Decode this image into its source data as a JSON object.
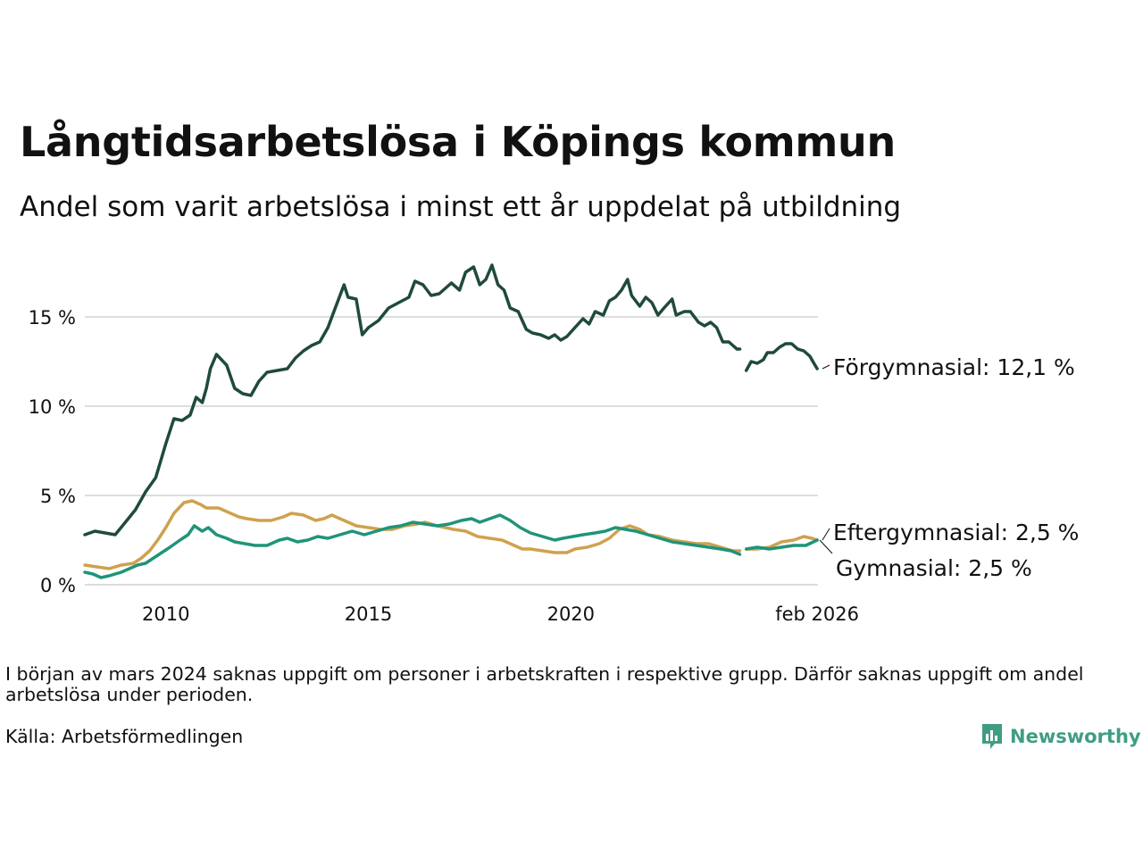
{
  "title": "Långtidsarbetslösa i Köpings kommun",
  "subtitle": "Andel som varit arbetslösa i minst ett år uppdelat på utbildning",
  "note": "I början av mars 2024 saknas uppgift om personer i arbetskraften i respektive grupp. Därför saknas uppgift om andel arbetslösa under perioden.",
  "source": "Källa: Arbetsförmedlingen",
  "brand": "Newsworthy",
  "colors": {
    "forgymnasial": "#1f4a3d",
    "eftergymnasial": "#cfa14f",
    "gymnasial": "#1f9479",
    "grid": "#dddddd",
    "brand": "#3f9d83"
  },
  "chart_data": {
    "type": "line",
    "title": "Långtidsarbetslösa i Köpings kommun",
    "subtitle": "Andel som varit arbetslösa i minst ett år uppdelat på utbildning",
    "xlabel": "",
    "ylabel": "",
    "xlim": [
      2008.0,
      2026.1
    ],
    "ylim": [
      0,
      18
    ],
    "grid": true,
    "yticks": [
      {
        "value": 0,
        "label": "0 %"
      },
      {
        "value": 5,
        "label": "5 %"
      },
      {
        "value": 10,
        "label": "10 %"
      },
      {
        "value": 15,
        "label": "15 %"
      }
    ],
    "xticks": [
      {
        "value": 2010,
        "label": "2010"
      },
      {
        "value": 2015,
        "label": "2015"
      },
      {
        "value": 2020,
        "label": "2020"
      },
      {
        "value": 2026.08,
        "label": "feb 2026"
      }
    ],
    "gap": [
      2024.17,
      2024.33
    ],
    "series": [
      {
        "name": "Förgymnasial",
        "color_key": "forgymnasial",
        "end_label": "Förgymnasial: 12,1 %",
        "points": [
          [
            2008.0,
            2.8
          ],
          [
            2008.25,
            3.0
          ],
          [
            2008.5,
            2.9
          ],
          [
            2008.75,
            2.8
          ],
          [
            2009.0,
            3.5
          ],
          [
            2009.25,
            4.2
          ],
          [
            2009.5,
            5.2
          ],
          [
            2009.75,
            6.0
          ],
          [
            2010.0,
            7.9
          ],
          [
            2010.2,
            9.3
          ],
          [
            2010.4,
            9.2
          ],
          [
            2010.6,
            9.5
          ],
          [
            2010.75,
            10.5
          ],
          [
            2010.9,
            10.2
          ],
          [
            2011.0,
            11.0
          ],
          [
            2011.1,
            12.1
          ],
          [
            2011.25,
            12.9
          ],
          [
            2011.5,
            12.3
          ],
          [
            2011.7,
            11.0
          ],
          [
            2011.9,
            10.7
          ],
          [
            2012.1,
            10.6
          ],
          [
            2012.3,
            11.4
          ],
          [
            2012.5,
            11.9
          ],
          [
            2012.75,
            12.0
          ],
          [
            2013.0,
            12.1
          ],
          [
            2013.2,
            12.7
          ],
          [
            2013.4,
            13.1
          ],
          [
            2013.6,
            13.4
          ],
          [
            2013.8,
            13.6
          ],
          [
            2014.0,
            14.4
          ],
          [
            2014.2,
            15.6
          ],
          [
            2014.4,
            16.8
          ],
          [
            2014.5,
            16.1
          ],
          [
            2014.7,
            16.0
          ],
          [
            2014.85,
            14.0
          ],
          [
            2015.0,
            14.4
          ],
          [
            2015.25,
            14.8
          ],
          [
            2015.5,
            15.5
          ],
          [
            2015.75,
            15.8
          ],
          [
            2016.0,
            16.1
          ],
          [
            2016.15,
            17.0
          ],
          [
            2016.35,
            16.8
          ],
          [
            2016.55,
            16.2
          ],
          [
            2016.75,
            16.3
          ],
          [
            2016.9,
            16.6
          ],
          [
            2017.05,
            16.9
          ],
          [
            2017.25,
            16.5
          ],
          [
            2017.4,
            17.5
          ],
          [
            2017.6,
            17.8
          ],
          [
            2017.75,
            16.8
          ],
          [
            2017.9,
            17.1
          ],
          [
            2018.05,
            17.9
          ],
          [
            2018.2,
            16.8
          ],
          [
            2018.35,
            16.5
          ],
          [
            2018.5,
            15.5
          ],
          [
            2018.7,
            15.3
          ],
          [
            2018.9,
            14.3
          ],
          [
            2019.05,
            14.1
          ],
          [
            2019.25,
            14.0
          ],
          [
            2019.45,
            13.8
          ],
          [
            2019.6,
            14.0
          ],
          [
            2019.75,
            13.7
          ],
          [
            2019.9,
            13.9
          ],
          [
            2020.1,
            14.4
          ],
          [
            2020.3,
            14.9
          ],
          [
            2020.45,
            14.6
          ],
          [
            2020.6,
            15.3
          ],
          [
            2020.8,
            15.1
          ],
          [
            2020.95,
            15.9
          ],
          [
            2021.1,
            16.1
          ],
          [
            2021.25,
            16.5
          ],
          [
            2021.4,
            17.1
          ],
          [
            2021.5,
            16.2
          ],
          [
            2021.7,
            15.6
          ],
          [
            2021.85,
            16.1
          ],
          [
            2022.0,
            15.8
          ],
          [
            2022.15,
            15.1
          ],
          [
            2022.3,
            15.5
          ],
          [
            2022.5,
            16.0
          ],
          [
            2022.6,
            15.1
          ],
          [
            2022.8,
            15.3
          ],
          [
            2022.95,
            15.3
          ],
          [
            2023.15,
            14.7
          ],
          [
            2023.3,
            14.5
          ],
          [
            2023.45,
            14.7
          ],
          [
            2023.6,
            14.4
          ],
          [
            2023.75,
            13.6
          ],
          [
            2023.9,
            13.6
          ],
          [
            2024.0,
            13.4
          ],
          [
            2024.1,
            13.2
          ],
          [
            2024.17,
            13.2
          ],
          [
            2024.33,
            12.0
          ],
          [
            2024.45,
            12.5
          ],
          [
            2024.6,
            12.4
          ],
          [
            2024.75,
            12.6
          ],
          [
            2024.85,
            13.0
          ],
          [
            2025.0,
            13.0
          ],
          [
            2025.15,
            13.3
          ],
          [
            2025.3,
            13.5
          ],
          [
            2025.45,
            13.5
          ],
          [
            2025.6,
            13.2
          ],
          [
            2025.75,
            13.1
          ],
          [
            2025.9,
            12.8
          ],
          [
            2026.0,
            12.4
          ],
          [
            2026.08,
            12.1
          ]
        ]
      },
      {
        "name": "Eftergymnasial",
        "color_key": "eftergymnasial",
        "end_label": "Eftergymnasial:  2,5 %",
        "points": [
          [
            2008.0,
            1.1
          ],
          [
            2008.3,
            1.0
          ],
          [
            2008.6,
            0.9
          ],
          [
            2008.9,
            1.1
          ],
          [
            2009.2,
            1.2
          ],
          [
            2009.4,
            1.5
          ],
          [
            2009.6,
            1.9
          ],
          [
            2009.8,
            2.5
          ],
          [
            2010.0,
            3.2
          ],
          [
            2010.2,
            4.0
          ],
          [
            2010.45,
            4.6
          ],
          [
            2010.65,
            4.7
          ],
          [
            2010.85,
            4.5
          ],
          [
            2011.0,
            4.3
          ],
          [
            2011.3,
            4.3
          ],
          [
            2011.5,
            4.1
          ],
          [
            2011.8,
            3.8
          ],
          [
            2012.0,
            3.7
          ],
          [
            2012.3,
            3.6
          ],
          [
            2012.6,
            3.6
          ],
          [
            2012.9,
            3.8
          ],
          [
            2013.1,
            4.0
          ],
          [
            2013.4,
            3.9
          ],
          [
            2013.7,
            3.6
          ],
          [
            2013.9,
            3.7
          ],
          [
            2014.1,
            3.9
          ],
          [
            2014.4,
            3.6
          ],
          [
            2014.7,
            3.3
          ],
          [
            2015.0,
            3.2
          ],
          [
            2015.3,
            3.1
          ],
          [
            2015.6,
            3.1
          ],
          [
            2015.9,
            3.3
          ],
          [
            2016.2,
            3.4
          ],
          [
            2016.4,
            3.5
          ],
          [
            2016.7,
            3.3
          ],
          [
            2016.9,
            3.2
          ],
          [
            2017.1,
            3.1
          ],
          [
            2017.4,
            3.0
          ],
          [
            2017.7,
            2.7
          ],
          [
            2018.0,
            2.6
          ],
          [
            2018.3,
            2.5
          ],
          [
            2018.5,
            2.3
          ],
          [
            2018.8,
            2.0
          ],
          [
            2019.0,
            2.0
          ],
          [
            2019.3,
            1.9
          ],
          [
            2019.6,
            1.8
          ],
          [
            2019.9,
            1.8
          ],
          [
            2020.1,
            2.0
          ],
          [
            2020.4,
            2.1
          ],
          [
            2020.7,
            2.3
          ],
          [
            2020.95,
            2.6
          ],
          [
            2021.2,
            3.1
          ],
          [
            2021.45,
            3.3
          ],
          [
            2021.7,
            3.1
          ],
          [
            2021.9,
            2.8
          ],
          [
            2022.2,
            2.7
          ],
          [
            2022.5,
            2.5
          ],
          [
            2022.8,
            2.4
          ],
          [
            2023.1,
            2.3
          ],
          [
            2023.4,
            2.3
          ],
          [
            2023.7,
            2.1
          ],
          [
            2024.0,
            1.9
          ],
          [
            2024.17,
            1.9
          ],
          [
            2024.33,
            2.0
          ],
          [
            2024.6,
            2.0
          ],
          [
            2024.9,
            2.1
          ],
          [
            2025.2,
            2.4
          ],
          [
            2025.5,
            2.5
          ],
          [
            2025.75,
            2.7
          ],
          [
            2025.95,
            2.6
          ],
          [
            2026.08,
            2.5
          ]
        ]
      },
      {
        "name": "Gymnasial",
        "color_key": "gymnasial",
        "end_label": "Gymnasial:  2,5 %",
        "points": [
          [
            2008.0,
            0.7
          ],
          [
            2008.2,
            0.6
          ],
          [
            2008.4,
            0.4
          ],
          [
            2008.6,
            0.5
          ],
          [
            2008.9,
            0.7
          ],
          [
            2009.1,
            0.9
          ],
          [
            2009.3,
            1.1
          ],
          [
            2009.5,
            1.2
          ],
          [
            2009.7,
            1.5
          ],
          [
            2009.9,
            1.8
          ],
          [
            2010.1,
            2.1
          ],
          [
            2010.35,
            2.5
          ],
          [
            2010.55,
            2.8
          ],
          [
            2010.7,
            3.3
          ],
          [
            2010.9,
            3.0
          ],
          [
            2011.05,
            3.2
          ],
          [
            2011.25,
            2.8
          ],
          [
            2011.5,
            2.6
          ],
          [
            2011.7,
            2.4
          ],
          [
            2011.95,
            2.3
          ],
          [
            2012.2,
            2.2
          ],
          [
            2012.5,
            2.2
          ],
          [
            2012.8,
            2.5
          ],
          [
            2013.0,
            2.6
          ],
          [
            2013.25,
            2.4
          ],
          [
            2013.5,
            2.5
          ],
          [
            2013.75,
            2.7
          ],
          [
            2014.0,
            2.6
          ],
          [
            2014.3,
            2.8
          ],
          [
            2014.6,
            3.0
          ],
          [
            2014.9,
            2.8
          ],
          [
            2015.2,
            3.0
          ],
          [
            2015.5,
            3.2
          ],
          [
            2015.8,
            3.3
          ],
          [
            2016.1,
            3.5
          ],
          [
            2016.4,
            3.4
          ],
          [
            2016.7,
            3.3
          ],
          [
            2017.0,
            3.4
          ],
          [
            2017.3,
            3.6
          ],
          [
            2017.55,
            3.7
          ],
          [
            2017.75,
            3.5
          ],
          [
            2018.0,
            3.7
          ],
          [
            2018.25,
            3.9
          ],
          [
            2018.5,
            3.6
          ],
          [
            2018.75,
            3.2
          ],
          [
            2019.0,
            2.9
          ],
          [
            2019.3,
            2.7
          ],
          [
            2019.6,
            2.5
          ],
          [
            2019.8,
            2.6
          ],
          [
            2020.05,
            2.7
          ],
          [
            2020.3,
            2.8
          ],
          [
            2020.6,
            2.9
          ],
          [
            2020.85,
            3.0
          ],
          [
            2021.1,
            3.2
          ],
          [
            2021.35,
            3.1
          ],
          [
            2021.6,
            3.0
          ],
          [
            2021.9,
            2.8
          ],
          [
            2022.2,
            2.6
          ],
          [
            2022.5,
            2.4
          ],
          [
            2022.8,
            2.3
          ],
          [
            2023.1,
            2.2
          ],
          [
            2023.4,
            2.1
          ],
          [
            2023.7,
            2.0
          ],
          [
            2023.95,
            1.9
          ],
          [
            2024.17,
            1.7
          ],
          [
            2024.33,
            2.0
          ],
          [
            2024.6,
            2.1
          ],
          [
            2024.9,
            2.0
          ],
          [
            2025.2,
            2.1
          ],
          [
            2025.5,
            2.2
          ],
          [
            2025.8,
            2.2
          ],
          [
            2026.08,
            2.5
          ]
        ]
      }
    ]
  }
}
